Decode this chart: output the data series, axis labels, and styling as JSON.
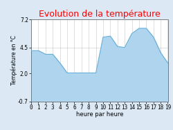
{
  "title": "Evolution de la température",
  "xlabel": "heure par heure",
  "ylabel": "Température en °C",
  "ylim": [
    -0.7,
    7.2
  ],
  "yticks": [
    -0.7,
    2.0,
    4.5,
    7.2
  ],
  "ytick_labels": [
    "-0.7",
    "2.0",
    "4.5",
    "7.2"
  ],
  "hours": [
    0,
    1,
    2,
    3,
    4,
    5,
    6,
    7,
    8,
    9,
    10,
    11,
    12,
    13,
    14,
    15,
    16,
    17,
    18,
    19
  ],
  "values": [
    4.2,
    4.2,
    3.85,
    3.85,
    3.0,
    2.05,
    2.05,
    2.05,
    2.05,
    2.05,
    5.5,
    5.6,
    4.6,
    4.5,
    5.85,
    6.35,
    6.35,
    5.5,
    4.0,
    3.0
  ],
  "line_color": "#6ab0d8",
  "fill_color": "#aed4ee",
  "background_color": "#dce9f5",
  "plot_bg_color": "#ffffff",
  "title_color": "#ff0000",
  "grid_color": "#bbbbbb",
  "title_fontsize": 9,
  "label_fontsize": 6,
  "tick_fontsize": 5.5,
  "ylabel_fontsize": 5.5
}
